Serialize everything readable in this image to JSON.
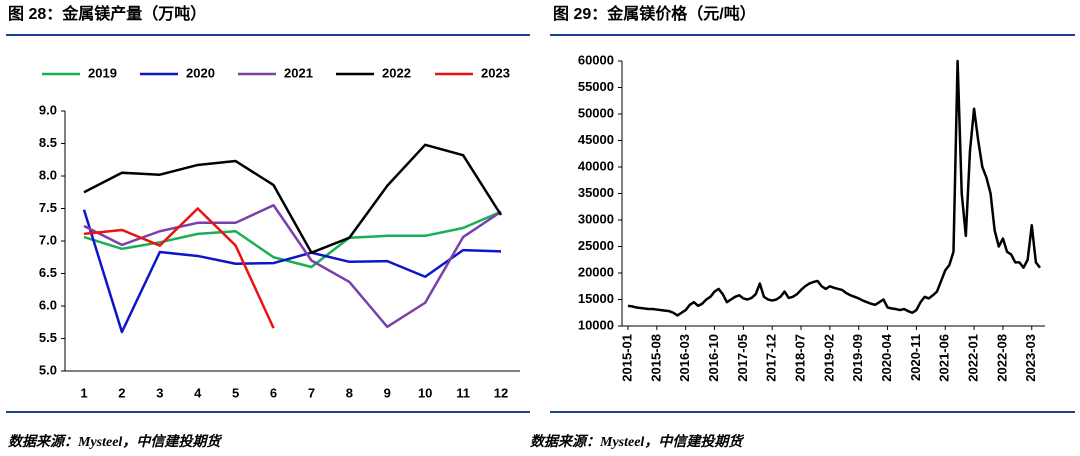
{
  "chart_data": [
    {
      "type": "line",
      "title": "图 28：金属镁产量（万吨）",
      "source": "数据来源：Mysteel，中信建投期货",
      "categories": [
        "1",
        "2",
        "3",
        "4",
        "5",
        "6",
        "7",
        "8",
        "9",
        "10",
        "11",
        "12"
      ],
      "series": [
        {
          "name": "2019",
          "color": "#1aaf54",
          "values": [
            7.06,
            6.88,
            6.98,
            7.11,
            7.15,
            6.75,
            6.6,
            7.05,
            7.08,
            7.08,
            7.2,
            7.45
          ]
        },
        {
          "name": "2020",
          "color": "#0a16c8",
          "values": [
            7.48,
            5.6,
            6.83,
            6.77,
            6.65,
            6.66,
            6.82,
            6.68,
            6.69,
            6.45,
            6.86,
            6.84
          ]
        },
        {
          "name": "2021",
          "color": "#7a40a8",
          "values": [
            7.23,
            6.94,
            7.15,
            7.28,
            7.28,
            7.55,
            6.7,
            6.37,
            5.68,
            6.05,
            7.06,
            7.45
          ]
        },
        {
          "name": "2022",
          "color": "#000000",
          "values": [
            7.75,
            8.05,
            8.02,
            8.17,
            8.23,
            7.86,
            6.82,
            7.05,
            7.85,
            8.48,
            8.32,
            7.4
          ]
        },
        {
          "name": "2023",
          "color": "#ee1111",
          "values": [
            7.11,
            7.17,
            6.93,
            7.5,
            6.93,
            5.66,
            null,
            null,
            null,
            null,
            null,
            null
          ]
        }
      ],
      "ylim": [
        5,
        9
      ],
      "yticks": [
        {
          "value": 5,
          "label": "5.0"
        },
        {
          "value": 5.5,
          "label": "5.5"
        },
        {
          "value": 6,
          "label": "6.0"
        },
        {
          "value": 6.5,
          "label": "6.5"
        },
        {
          "value": 7,
          "label": "7.0"
        },
        {
          "value": 7.5,
          "label": "7.5"
        },
        {
          "value": 8,
          "label": "8.0"
        },
        {
          "value": 8.5,
          "label": "8.5"
        },
        {
          "value": 9,
          "label": "9.0"
        }
      ],
      "legend": "top",
      "grid": false
    },
    {
      "type": "line",
      "title": "图 29：金属镁价格（元/吨）",
      "source": "数据来源：Mysteel，中信建投期货",
      "x": [
        "2015-01",
        "2015-02",
        "2015-03",
        "2015-04",
        "2015-05",
        "2015-06",
        "2015-07",
        "2015-08",
        "2015-09",
        "2015-10",
        "2015-11",
        "2015-12",
        "2016-01",
        "2016-02",
        "2016-03",
        "2016-04",
        "2016-05",
        "2016-06",
        "2016-07",
        "2016-08",
        "2016-09",
        "2016-10",
        "2016-11",
        "2016-12",
        "2017-01",
        "2017-02",
        "2017-03",
        "2017-04",
        "2017-05",
        "2017-06",
        "2017-07",
        "2017-08",
        "2017-09",
        "2017-10",
        "2017-11",
        "2017-12",
        "2018-01",
        "2018-02",
        "2018-03",
        "2018-04",
        "2018-05",
        "2018-06",
        "2018-07",
        "2018-08",
        "2018-09",
        "2018-10",
        "2018-11",
        "2018-12",
        "2019-01",
        "2019-02",
        "2019-03",
        "2019-04",
        "2019-05",
        "2019-06",
        "2019-07",
        "2019-08",
        "2019-09",
        "2019-10",
        "2019-11",
        "2019-12",
        "2020-01",
        "2020-02",
        "2020-03",
        "2020-04",
        "2020-05",
        "2020-06",
        "2020-07",
        "2020-08",
        "2020-09",
        "2020-10",
        "2020-11",
        "2020-12",
        "2021-01",
        "2021-02",
        "2021-03",
        "2021-04",
        "2021-05",
        "2021-06",
        "2021-07",
        "2021-08",
        "2021-09",
        "2021-10",
        "2021-11",
        "2021-12",
        "2022-01",
        "2022-02",
        "2022-03",
        "2022-04",
        "2022-05",
        "2022-06",
        "2022-07",
        "2022-08",
        "2022-09",
        "2022-10",
        "2022-11",
        "2022-12",
        "2023-01",
        "2023-02",
        "2023-03",
        "2023-04",
        "2023-05"
      ],
      "series": [
        {
          "name": "金属镁价格",
          "color": "#000000",
          "values": [
            13800,
            13700,
            13500,
            13400,
            13300,
            13200,
            13200,
            13100,
            13000,
            12900,
            12800,
            12500,
            12000,
            12500,
            13000,
            14000,
            14500,
            13800,
            14200,
            15000,
            15500,
            16500,
            17000,
            16000,
            14500,
            15000,
            15500,
            15800,
            15200,
            15000,
            15300,
            16000,
            18000,
            15500,
            15000,
            14800,
            15000,
            15500,
            16500,
            15300,
            15500,
            16000,
            16800,
            17500,
            18000,
            18300,
            18500,
            17500,
            17000,
            17500,
            17200,
            17000,
            16800,
            16200,
            15800,
            15500,
            15200,
            14800,
            14500,
            14200,
            14000,
            14500,
            15000,
            13500,
            13300,
            13200,
            13000,
            13200,
            12800,
            12500,
            13000,
            14500,
            15500,
            15200,
            15800,
            16500,
            18500,
            20500,
            21500,
            24000,
            60000,
            35000,
            27000,
            43000,
            51000,
            45000,
            40000,
            38000,
            35000,
            28000,
            25000,
            26500,
            24000,
            23500,
            22000,
            22000,
            21000,
            22500,
            29000,
            22000,
            21000
          ]
        }
      ],
      "xticks": [
        "2015-01",
        "2015-08",
        "2016-03",
        "2016-10",
        "2017-05",
        "2017-12",
        "2018-07",
        "2019-02",
        "2019-09",
        "2020-04",
        "2020-11",
        "2021-06",
        "2022-01",
        "2022-08",
        "2023-03"
      ],
      "ylim": [
        10000,
        60000
      ],
      "yticks": [
        10000,
        15000,
        20000,
        25000,
        30000,
        35000,
        40000,
        45000,
        50000,
        55000,
        60000
      ],
      "grid": false
    }
  ]
}
